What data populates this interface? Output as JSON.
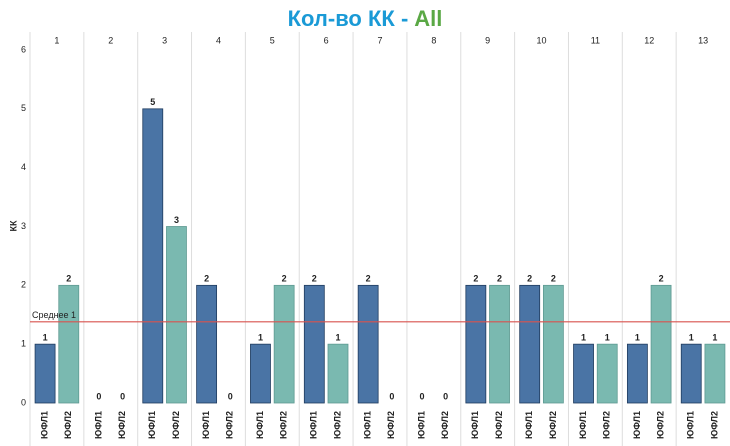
{
  "chart_data": {
    "type": "bar",
    "title": [
      "Кол-во КК -",
      "All"
    ],
    "title_colors": [
      "#1a9ad6",
      "#5aa845"
    ],
    "y_label": "КК",
    "groups": [
      "1",
      "2",
      "3",
      "4",
      "5",
      "6",
      "7",
      "8",
      "9",
      "10",
      "11",
      "12",
      "13"
    ],
    "series": [
      {
        "name": "ЮФЛ1",
        "color": "#4a74a5",
        "values": [
          1,
          0,
          5,
          2,
          1,
          2,
          2,
          0,
          2,
          2,
          1,
          1,
          1
        ]
      },
      {
        "name": "ЮФЛ2",
        "color": "#7ab9b0",
        "values": [
          2,
          0,
          3,
          0,
          2,
          1,
          0,
          0,
          2,
          2,
          1,
          2,
          1
        ]
      }
    ],
    "average": {
      "value": 1.38,
      "label": "Среднее 1",
      "color": "#d9534f"
    },
    "ylim": [
      0,
      6
    ],
    "yticks": [
      0,
      1,
      2,
      3,
      4,
      5,
      6
    ]
  }
}
